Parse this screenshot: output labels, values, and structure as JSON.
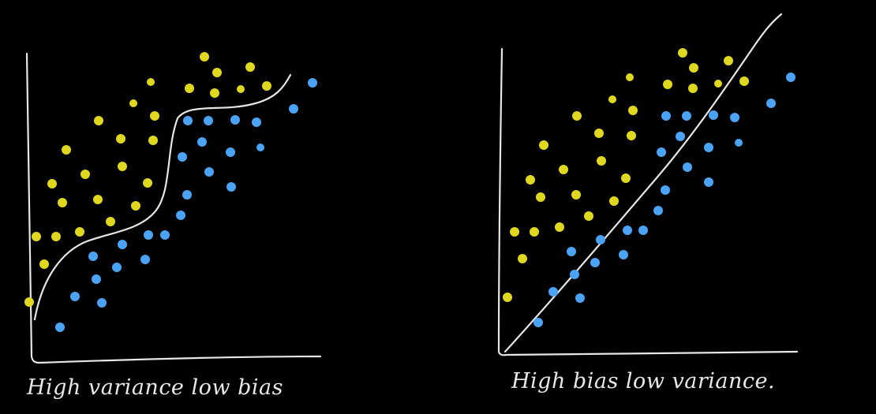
{
  "colors": {
    "background": "#000000",
    "line": "#e6e6e6",
    "class_a": "#e0d81f",
    "class_b": "#4aa3f5"
  },
  "panels": [
    {
      "caption": "High variance low bias",
      "boundary": "curved",
      "class_a_count": 30,
      "class_b_count": 25
    },
    {
      "caption": "High bias   low variance.",
      "boundary": "straight",
      "class_a_count": 30,
      "class_b_count": 25
    }
  ]
}
